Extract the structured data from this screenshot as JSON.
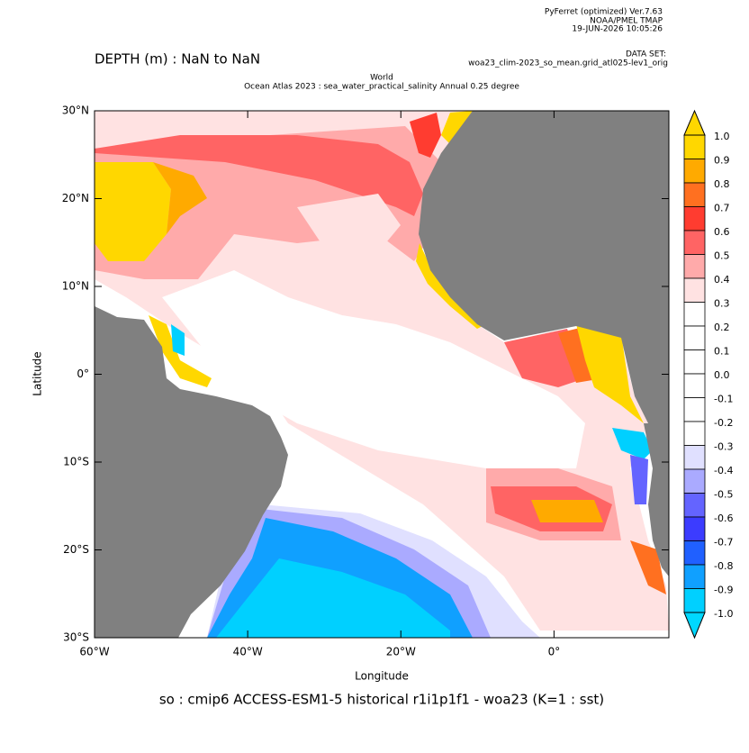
{
  "header": {
    "software": "PyFerret (optimized) Ver.7.63",
    "organization": "NOAA/PMEL TMAP",
    "timestamp": "19-JUN-2026 10:05:26",
    "dataset_label": "DATA SET:",
    "dataset": "woa23_clim-2023_so_mean.grid_atl025-lev1_orig",
    "depth": "DEPTH (m) : NaN to NaN"
  },
  "chart_data": {
    "type": "map",
    "title": "World",
    "subtitle": "Ocean Atlas 2023 : sea_water_practical_salinity Annual  0.25 degree",
    "x_label": "Longitude",
    "y_label": "Latitude",
    "caption": "so : cmip6 ACCESS-ESM1-5 historical r1i1p1f1 - woa23  (K=1 : sst)",
    "xlim": [
      -60,
      15
    ],
    "xticks": [
      {
        "value": -60,
        "label": "60°W"
      },
      {
        "value": -40,
        "label": "40°W"
      },
      {
        "value": -20,
        "label": "20°W"
      },
      {
        "value": 0,
        "label": "0°"
      }
    ],
    "ylim": [
      -30,
      30
    ],
    "yticks": [
      {
        "value": 30,
        "label": "30°N"
      },
      {
        "value": 20,
        "label": "20°N"
      },
      {
        "value": 10,
        "label": "10°N"
      },
      {
        "value": 0,
        "label": "0°"
      },
      {
        "value": -10,
        "label": "10°S"
      },
      {
        "value": -20,
        "label": "20°S"
      },
      {
        "value": -30,
        "label": "30°S"
      }
    ],
    "colorbar": {
      "levels": [
        {
          "value": 1,
          "label": "1.0"
        },
        0.9,
        0.8,
        0.7,
        0.6,
        0.5,
        0.4,
        0.3,
        0.2,
        0.1,
        {
          "value": 0,
          "label": "0.0"
        },
        -0.1,
        -0.2,
        -0.3,
        -0.4,
        -0.5,
        -0.6,
        -0.7,
        -0.8,
        -0.9,
        {
          "value": -1,
          "label": "-1.0"
        }
      ],
      "colors": [
        "#ffd700",
        "#ffaa00",
        "#ff7020",
        "#ff3c30",
        "#ff6464",
        "#ffaaaa",
        "#ffe2e2",
        "#ffffff",
        "#ffffff",
        "#ffffff",
        "#ffffff",
        "#ffffff",
        "#ffffff",
        "#e0e0ff",
        "#aaaaff",
        "#6464ff",
        "#3c3cff",
        "#2060ff",
        "#10a0ff",
        "#00d0ff"
      ],
      "over_color": "#ffd700",
      "under_color": "#00d8ff"
    },
    "land_color": "#808080"
  }
}
